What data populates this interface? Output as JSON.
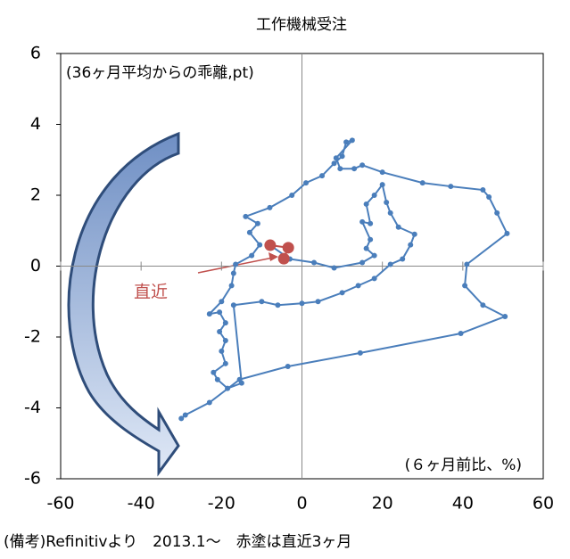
{
  "chart_data": {
    "type": "scatter-line",
    "title": "工作機械受注",
    "y_note": "(36ヶ月平均からの乖離,pt)",
    "x_note": "(６ヶ月前比、%)",
    "annotation": "直近",
    "footer": "(備考)Refinitivより　2013.1～　赤塗は直近3ヶ月",
    "xlim": [
      -60,
      60
    ],
    "xticks": [
      -60,
      -40,
      -20,
      0,
      20,
      40,
      60
    ],
    "ylim": [
      -6,
      6
    ],
    "yticks": [
      -6,
      -4,
      -2,
      0,
      2,
      4,
      6
    ],
    "series": [
      {
        "color": "#4a7ebb",
        "x": [
          -30,
          -29,
          -23,
          -15.5,
          -3.5,
          14.5,
          39.5,
          50.5,
          45,
          40.5,
          41,
          51,
          48.5,
          46.5,
          45,
          37,
          30,
          20,
          15,
          13,
          9.5,
          8.5,
          12.5,
          11,
          10,
          8,
          5,
          1,
          -2.5,
          -8,
          -14,
          -11,
          -13,
          -10.5,
          -12.5,
          -16.5,
          -17,
          -17.5,
          -20,
          -23,
          -20.5,
          -19,
          -20.5,
          -19,
          -20,
          -19,
          -22,
          -21,
          -18.5,
          -15,
          -17,
          -10,
          -6,
          0,
          4,
          10,
          14,
          18,
          22,
          25,
          27,
          28,
          24,
          22,
          21,
          20,
          18,
          16,
          17,
          15,
          17,
          16,
          18,
          15,
          8,
          3,
          -3
        ],
        "y": [
          -4.3,
          -4.2,
          -3.85,
          -3.2,
          -2.83,
          -2.45,
          -1.9,
          -1.42,
          -1.1,
          -0.55,
          0.05,
          0.92,
          1.5,
          1.95,
          2.15,
          2.25,
          2.35,
          2.65,
          2.85,
          2.75,
          2.75,
          3.05,
          3.55,
          3.5,
          3.1,
          2.9,
          2.55,
          2.35,
          2.0,
          1.65,
          1.4,
          1.2,
          0.95,
          0.6,
          0.3,
          0.05,
          -0.2,
          -0.55,
          -1.0,
          -1.35,
          -1.3,
          -1.6,
          -1.85,
          -2.1,
          -2.4,
          -2.75,
          -3.0,
          -3.2,
          -3.45,
          -3.3,
          -1.1,
          -1.0,
          -1.1,
          -1.05,
          -1.0,
          -0.75,
          -0.55,
          -0.35,
          0.05,
          0.2,
          0.6,
          0.9,
          1.1,
          1.5,
          1.8,
          2.3,
          2.0,
          1.75,
          1.2,
          1.25,
          0.75,
          0.5,
          0.3,
          0.1,
          -0.05,
          0.1,
          0.2
        ]
      },
      {
        "color": "#c0504d",
        "x": [
          -7.9,
          -3.4,
          -4.5
        ],
        "y": [
          0.59,
          0.52,
          0.21
        ]
      }
    ]
  }
}
